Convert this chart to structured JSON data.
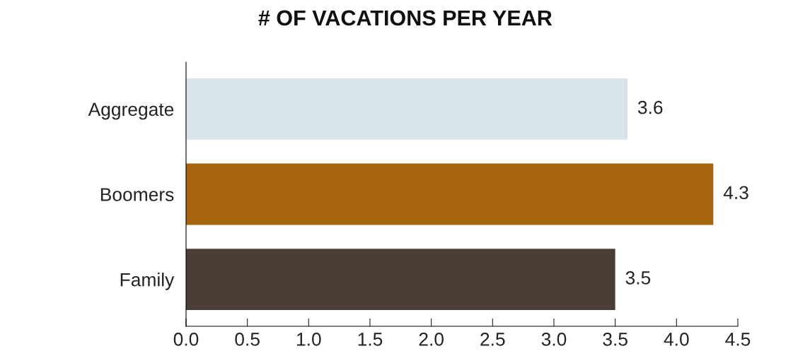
{
  "chart_data": {
    "type": "bar",
    "orientation": "horizontal",
    "title": "# OF VACATIONS PER YEAR",
    "categories": [
      "Aggregate",
      "Boomers",
      "Family"
    ],
    "values": [
      3.6,
      4.3,
      3.5
    ],
    "colors": [
      "#d9e4e8",
      "#a8650f",
      "#4a3e36"
    ],
    "xlim": [
      0,
      4.5
    ],
    "xticks": [
      {
        "value": 0,
        "label": "0.0"
      },
      {
        "value": 0.5,
        "label": "0.5"
      },
      {
        "value": 1,
        "label": "1.0"
      },
      {
        "value": 1.5,
        "label": "1.5"
      },
      {
        "value": 2,
        "label": "2.0"
      },
      {
        "value": 2.5,
        "label": "2.5"
      },
      {
        "value": 3,
        "label": "3.0"
      },
      {
        "value": 3.5,
        "label": "3.5"
      },
      {
        "value": 4,
        "label": "4.0"
      },
      {
        "value": 4.5,
        "label": "4.5"
      }
    ],
    "data_labels": true,
    "grid": false,
    "legend": false
  }
}
